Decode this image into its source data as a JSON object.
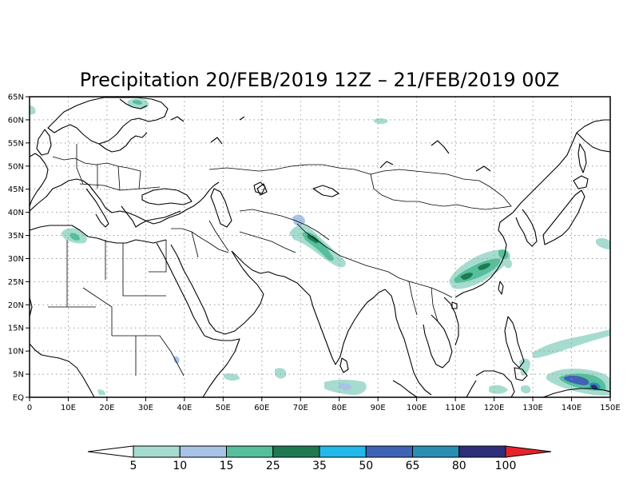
{
  "title": "Precipitation 20/FEB/2019 12Z – 21/FEB/2019 00Z",
  "map": {
    "lon_range": [
      0,
      150
    ],
    "lat_range": [
      0,
      65
    ],
    "x_ticks": [
      "0",
      "10E",
      "20E",
      "30E",
      "40E",
      "50E",
      "60E",
      "70E",
      "80E",
      "90E",
      "100E",
      "110E",
      "120E",
      "130E",
      "140E",
      "150E"
    ],
    "y_ticks": [
      "EQ",
      "5N",
      "10N",
      "15N",
      "20N",
      "25N",
      "30N",
      "35N",
      "40N",
      "45N",
      "50N",
      "55N",
      "60N",
      "65N"
    ],
    "grid": "dotted"
  },
  "colorbar": {
    "levels": [
      "5",
      "10",
      "15",
      "25",
      "35",
      "50",
      "65",
      "80",
      "100"
    ],
    "colors": [
      "#ffffff",
      "#a6dccf",
      "#a9c3e6",
      "#56bf9b",
      "#1f7a52",
      "#22b9ea",
      "#3f63b5",
      "#2a8fb3",
      "#2e2f78",
      "#e8222a"
    ]
  },
  "precip_cells": [
    {
      "name": "western-himalaya",
      "lon": 73.5,
      "lat": 34.0,
      "level": "35"
    },
    {
      "name": "eastern-china",
      "lon": 116.5,
      "lat": 28.0,
      "level": "35"
    },
    {
      "name": "western-pacific",
      "lon": 144.5,
      "lat": 3.5,
      "level": "80"
    },
    {
      "name": "algeria-coast",
      "lon": 11.0,
      "lat": 35.5,
      "level": "15"
    },
    {
      "name": "northern-scandinavia",
      "lon": 27.0,
      "lat": 63.0,
      "level": "15"
    },
    {
      "name": "bay-of-bengal-south",
      "lon": 84.0,
      "lat": 2.0,
      "level": "10"
    },
    {
      "name": "philippine-sea",
      "lon": 138.0,
      "lat": 11.0,
      "level": "5"
    },
    {
      "name": "east-china-sea",
      "lon": 122.0,
      "lat": 31.0,
      "level": "25"
    }
  ]
}
